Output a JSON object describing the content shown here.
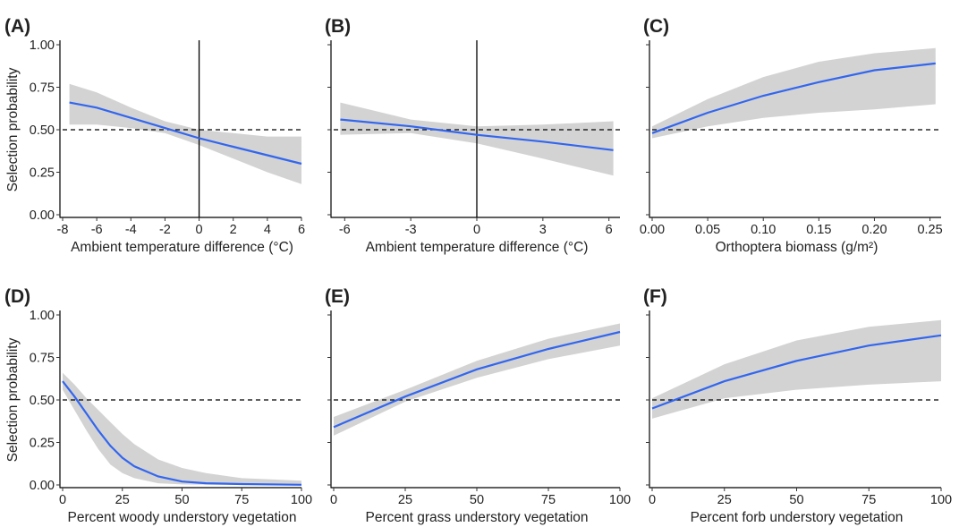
{
  "figure": {
    "line_color": "#3366ee",
    "band_color": "#d3d3d3",
    "reference_line_color": "#000000"
  },
  "chart_data": [
    {
      "type": "line",
      "panel_label": "(A)",
      "xlabel": "Ambient temperature difference (°C)",
      "ylabel": "Selection probability",
      "xlim": [
        -8,
        6
      ],
      "ylim": [
        0,
        1
      ],
      "xticks": [
        -8,
        -6,
        -4,
        -2,
        0,
        2,
        4,
        6
      ],
      "xtick_labels": [
        "-8",
        "-6",
        "-4",
        "-2",
        "0",
        "2",
        "4",
        "6"
      ],
      "yticks": [
        0,
        0.25,
        0.5,
        0.75,
        1
      ],
      "ytick_labels": [
        "0.00",
        "0.25",
        "0.50",
        "0.75",
        "1.00"
      ],
      "show_yticklabels": true,
      "hline": 0.5,
      "vline": 0,
      "series": [
        {
          "x": [
            -7.6,
            -6,
            -4,
            -2,
            0,
            2,
            4,
            6
          ],
          "y": [
            0.66,
            0.63,
            0.57,
            0.51,
            0.45,
            0.4,
            0.35,
            0.3
          ],
          "lower": [
            0.53,
            0.53,
            0.51,
            0.48,
            0.41,
            0.33,
            0.25,
            0.18
          ],
          "upper": [
            0.77,
            0.72,
            0.63,
            0.55,
            0.5,
            0.48,
            0.46,
            0.46
          ]
        }
      ]
    },
    {
      "type": "line",
      "panel_label": "(B)",
      "xlabel": "Ambient temperature difference (°C)",
      "ylabel": "",
      "xlim": [
        -6.5,
        6.5
      ],
      "ylim": [
        0,
        1
      ],
      "xticks": [
        -6,
        -3,
        0,
        3,
        6
      ],
      "xtick_labels": [
        "-6",
        "-3",
        "0",
        "3",
        "6"
      ],
      "yticks": [
        0,
        0.25,
        0.5,
        0.75,
        1
      ],
      "ytick_labels": [
        "0.00",
        "0.25",
        "0.50",
        "0.75",
        "1.00"
      ],
      "show_yticklabels": false,
      "hline": 0.5,
      "vline": 0,
      "series": [
        {
          "x": [
            -6.2,
            -3,
            0,
            3,
            6.2
          ],
          "y": [
            0.56,
            0.52,
            0.47,
            0.43,
            0.38
          ],
          "lower": [
            0.47,
            0.48,
            0.42,
            0.33,
            0.23
          ],
          "upper": [
            0.66,
            0.56,
            0.52,
            0.53,
            0.55
          ]
        }
      ]
    },
    {
      "type": "line",
      "panel_label": "(C)",
      "xlabel": "Orthoptera biomass (g/m²)",
      "ylabel": "",
      "xlim": [
        0,
        0.26
      ],
      "ylim": [
        0,
        1
      ],
      "xticks": [
        0,
        0.05,
        0.1,
        0.15,
        0.2,
        0.25
      ],
      "xtick_labels": [
        "0.00",
        "0.05",
        "0.10",
        "0.15",
        "0.20",
        "0.25"
      ],
      "yticks": [
        0,
        0.25,
        0.5,
        0.75,
        1
      ],
      "ytick_labels": [
        "0.00",
        "0.25",
        "0.50",
        "0.75",
        "1.00"
      ],
      "show_yticklabels": false,
      "hline": 0.5,
      "vline": null,
      "series": [
        {
          "x": [
            0,
            0.05,
            0.1,
            0.15,
            0.2,
            0.255
          ],
          "y": [
            0.48,
            0.6,
            0.7,
            0.78,
            0.85,
            0.89
          ],
          "lower": [
            0.45,
            0.52,
            0.57,
            0.6,
            0.62,
            0.65
          ],
          "upper": [
            0.52,
            0.68,
            0.81,
            0.9,
            0.95,
            0.98
          ]
        }
      ]
    },
    {
      "type": "line",
      "panel_label": "(D)",
      "xlabel": "Percent woody understory vegetation",
      "ylabel": "Selection probability",
      "xlim": [
        0,
        100
      ],
      "ylim": [
        0,
        1
      ],
      "xticks": [
        0,
        25,
        50,
        75,
        100
      ],
      "xtick_labels": [
        "0",
        "25",
        "50",
        "75",
        "100"
      ],
      "yticks": [
        0,
        0.25,
        0.5,
        0.75,
        1
      ],
      "ytick_labels": [
        "0.00",
        "0.25",
        "0.50",
        "0.75",
        "1.00"
      ],
      "show_yticklabels": true,
      "hline": 0.5,
      "vline": null,
      "series": [
        {
          "x": [
            0,
            5,
            10,
            15,
            20,
            25,
            30,
            40,
            50,
            60,
            75,
            100
          ],
          "y": [
            0.61,
            0.52,
            0.42,
            0.32,
            0.23,
            0.16,
            0.11,
            0.05,
            0.02,
            0.01,
            0.005,
            0.001
          ],
          "lower": [
            0.56,
            0.44,
            0.32,
            0.21,
            0.12,
            0.07,
            0.04,
            0.01,
            0.003,
            0.001,
            0.0,
            0.0
          ],
          "upper": [
            0.66,
            0.59,
            0.51,
            0.44,
            0.37,
            0.3,
            0.24,
            0.15,
            0.1,
            0.07,
            0.04,
            0.025
          ]
        }
      ]
    },
    {
      "type": "line",
      "panel_label": "(E)",
      "xlabel": "Percent grass understory vegetation",
      "ylabel": "",
      "xlim": [
        0,
        100
      ],
      "ylim": [
        0,
        1
      ],
      "xticks": [
        0,
        25,
        50,
        75,
        100
      ],
      "xtick_labels": [
        "0",
        "25",
        "50",
        "75",
        "100"
      ],
      "yticks": [
        0,
        0.25,
        0.5,
        0.75,
        1
      ],
      "ytick_labels": [
        "0.00",
        "0.25",
        "0.50",
        "0.75",
        "1.00"
      ],
      "show_yticklabels": false,
      "hline": 0.5,
      "vline": null,
      "series": [
        {
          "x": [
            0,
            25,
            50,
            75,
            100
          ],
          "y": [
            0.34,
            0.52,
            0.68,
            0.8,
            0.9
          ],
          "lower": [
            0.29,
            0.49,
            0.63,
            0.74,
            0.82
          ],
          "upper": [
            0.4,
            0.56,
            0.73,
            0.86,
            0.95
          ]
        }
      ]
    },
    {
      "type": "line",
      "panel_label": "(F)",
      "xlabel": "Percent forb understory vegetation",
      "ylabel": "",
      "xlim": [
        0,
        100
      ],
      "ylim": [
        0,
        1
      ],
      "xticks": [
        0,
        25,
        50,
        75,
        100
      ],
      "xtick_labels": [
        "0",
        "25",
        "50",
        "75",
        "100"
      ],
      "yticks": [
        0,
        0.25,
        0.5,
        0.75,
        1
      ],
      "ytick_labels": [
        "0.00",
        "0.25",
        "0.50",
        "0.75",
        "1.00"
      ],
      "show_yticklabels": false,
      "hline": 0.5,
      "vline": null,
      "series": [
        {
          "x": [
            0,
            25,
            50,
            75,
            100
          ],
          "y": [
            0.45,
            0.61,
            0.73,
            0.82,
            0.88
          ],
          "lower": [
            0.39,
            0.51,
            0.56,
            0.59,
            0.61
          ],
          "upper": [
            0.51,
            0.71,
            0.85,
            0.93,
            0.97
          ]
        }
      ]
    }
  ]
}
